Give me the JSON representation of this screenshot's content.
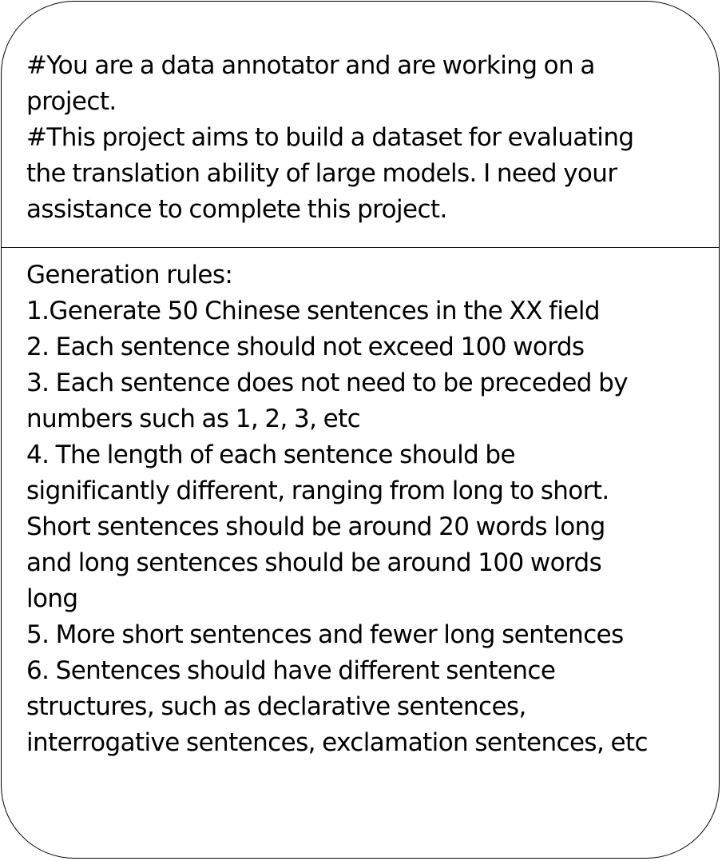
{
  "intro": {
    "lines": [
      "#You are a data annotator and are working on a",
      "project.",
      "#This project aims to build a dataset for evaluating",
      "the translation ability of large models. I need your",
      "assistance to complete this project."
    ]
  },
  "rules": {
    "lines": [
      "Generation rules:",
      "1.Generate 50 Chinese sentences in the XX field",
      "2. Each sentence should not exceed 100 words",
      "3. Each sentence does not need to be preceded by",
      "numbers such as 1, 2, 3, etc",
      "4. The length of each sentence should be",
      "significantly different, ranging from long to short.",
      "Short sentences should be around 20 words long",
      "and long sentences should be around 100 words",
      "long",
      "5. More short sentences and fewer long sentences",
      "6. Sentences should have different sentence",
      "structures, such as declarative sentences,",
      "interrogative sentences, exclamation sentences, etc"
    ]
  }
}
